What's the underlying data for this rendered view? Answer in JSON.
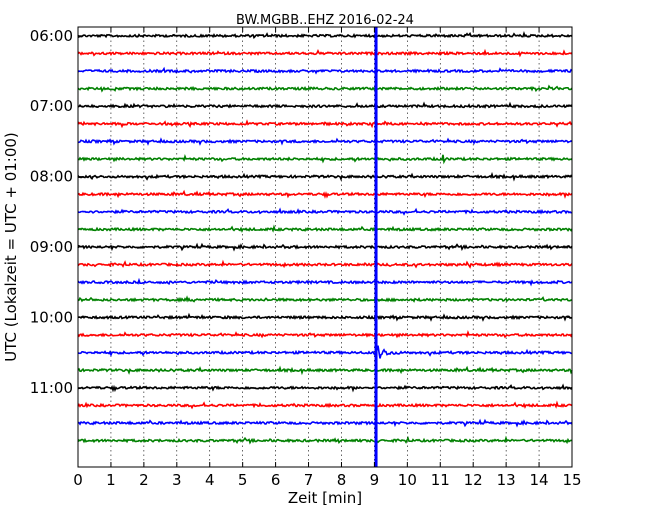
{
  "chart_data": {
    "type": "line",
    "title": "BW.MGBB..EHZ 2016-02-24",
    "xlabel": "Zeit  [min]",
    "ylabel": "UTC (Lokalzeit = UTC + 01:00)",
    "xlim": [
      0,
      15
    ],
    "xticks": [
      "0",
      "1",
      "2",
      "3",
      "4",
      "5",
      "6",
      "7",
      "8",
      "9",
      "10",
      "11",
      "12",
      "13",
      "14",
      "15"
    ],
    "ylim_time": [
      "05:52:30",
      "12:07:30"
    ],
    "ytick_labels": [
      "06:00",
      "07:00",
      "08:00",
      "09:00",
      "10:00",
      "11:00"
    ],
    "grid": true,
    "trace_interval_min": 15,
    "trace_colors": [
      "#000000",
      "#ff0000",
      "#0000ff",
      "#008000"
    ],
    "traces": [
      {
        "start": "06:00",
        "color": "#000000"
      },
      {
        "start": "06:15",
        "color": "#ff0000"
      },
      {
        "start": "06:30",
        "color": "#0000ff"
      },
      {
        "start": "06:45",
        "color": "#008000"
      },
      {
        "start": "07:00",
        "color": "#000000"
      },
      {
        "start": "07:15",
        "color": "#ff0000"
      },
      {
        "start": "07:30",
        "color": "#0000ff"
      },
      {
        "start": "07:45",
        "color": "#008000"
      },
      {
        "start": "08:00",
        "color": "#000000"
      },
      {
        "start": "08:15",
        "color": "#ff0000"
      },
      {
        "start": "08:30",
        "color": "#0000ff"
      },
      {
        "start": "08:45",
        "color": "#008000"
      },
      {
        "start": "09:00",
        "color": "#000000"
      },
      {
        "start": "09:15",
        "color": "#ff0000"
      },
      {
        "start": "09:30",
        "color": "#0000ff"
      },
      {
        "start": "09:45",
        "color": "#008000"
      },
      {
        "start": "10:00",
        "color": "#000000"
      },
      {
        "start": "10:15",
        "color": "#ff0000"
      },
      {
        "start": "10:30",
        "color": "#0000ff"
      },
      {
        "start": "10:45",
        "color": "#008000"
      },
      {
        "start": "11:00",
        "color": "#000000"
      },
      {
        "start": "11:15",
        "color": "#ff0000"
      },
      {
        "start": "11:30",
        "color": "#0000ff"
      },
      {
        "start": "11:45",
        "color": "#008000"
      }
    ],
    "events": [
      {
        "trace_start": "07:45",
        "time_min": 11.1,
        "color": "#008000",
        "note_type": "small spike"
      },
      {
        "trace_start": "10:30",
        "time_min": 9.05,
        "color": "#0000ff",
        "note_type": "earthquake"
      }
    ]
  }
}
